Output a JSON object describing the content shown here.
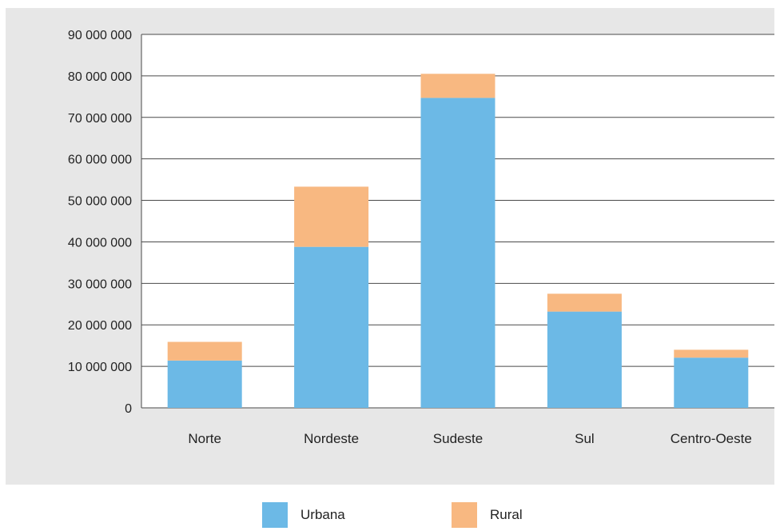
{
  "chart_data": {
    "type": "bar",
    "stacked": true,
    "categories": [
      "Norte",
      "Nordeste",
      "Sudeste",
      "Sul",
      "Centro-Oeste"
    ],
    "series": [
      {
        "name": "Urbana",
        "color": "#6cb9e6",
        "values": [
          11400000,
          38800000,
          74700000,
          23200000,
          12100000
        ]
      },
      {
        "name": "Rural",
        "color": "#f8b881",
        "values": [
          4500000,
          14500000,
          5800000,
          4300000,
          1900000
        ]
      }
    ],
    "ylim": [
      0,
      90000000
    ],
    "yticks": [
      0,
      10000000,
      20000000,
      30000000,
      40000000,
      50000000,
      60000000,
      70000000,
      80000000,
      90000000
    ],
    "ytick_labels": [
      "0",
      "10 000 000",
      "20 000 000",
      "30 000 000",
      "40 000 000",
      "50 000 000",
      "60 000 000",
      "70 000 000",
      "80 000 000",
      "90 000 000"
    ],
    "title": "",
    "xlabel": "",
    "ylabel": "",
    "grid": true,
    "legend_position": "bottom"
  }
}
